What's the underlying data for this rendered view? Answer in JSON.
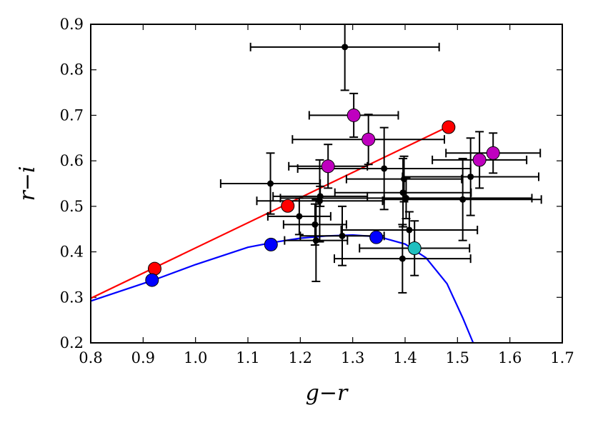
{
  "chart_data": {
    "type": "scatter",
    "title": "",
    "xlabel": "g−r",
    "ylabel": "r−i",
    "xlim": [
      0.8,
      1.7
    ],
    "ylim": [
      0.2,
      0.9
    ],
    "grid": false,
    "x_ticks": [
      "0.8",
      "0.9",
      "1.0",
      "1.1",
      "1.2",
      "1.3",
      "1.4",
      "1.5",
      "1.6",
      "1.7"
    ],
    "y_ticks": [
      "0.2",
      "0.3",
      "0.4",
      "0.5",
      "0.6",
      "0.7",
      "0.8",
      "0.9"
    ],
    "error_points": [
      {
        "x": 1.285,
        "y": 0.85,
        "xerr": 0.18,
        "yerr": 0.095
      },
      {
        "x": 1.143,
        "y": 0.55,
        "xerr": 0.095,
        "yerr": 0.067
      },
      {
        "x": 1.36,
        "y": 0.583,
        "xerr": 0.165,
        "yerr": 0.09
      },
      {
        "x": 1.238,
        "y": 0.522,
        "xerr": 0.09,
        "yerr": 0.022
      },
      {
        "x": 1.237,
        "y": 0.512,
        "xerr": 0.12,
        "yerr": 0.09
      },
      {
        "x": 1.398,
        "y": 0.56,
        "xerr": 0.11,
        "yerr": 0.05
      },
      {
        "x": 1.396,
        "y": 0.53,
        "xerr": 0.13,
        "yerr": 0.075
      },
      {
        "x": 1.402,
        "y": 0.518,
        "xerr": 0.24,
        "yerr": 0.045
      },
      {
        "x": 1.51,
        "y": 0.515,
        "xerr": 0.15,
        "yerr": 0.09
      },
      {
        "x": 1.525,
        "y": 0.565,
        "xerr": 0.13,
        "yerr": 0.085
      },
      {
        "x": 1.198,
        "y": 0.478,
        "xerr": 0.06,
        "yerr": 0.04
      },
      {
        "x": 1.228,
        "y": 0.46,
        "xerr": 0.06,
        "yerr": 0.045
      },
      {
        "x": 1.23,
        "y": 0.425,
        "xerr": 0.06,
        "yerr": 0.09
      },
      {
        "x": 1.28,
        "y": 0.435,
        "xerr": 0.08,
        "yerr": 0.065
      },
      {
        "x": 1.408,
        "y": 0.448,
        "xerr": 0.13,
        "yerr": 0.04
      },
      {
        "x": 1.395,
        "y": 0.385,
        "xerr": 0.13,
        "yerr": 0.075
      }
    ],
    "series": [
      {
        "name": "red",
        "color": "#ff0000",
        "type": "line",
        "x": [
          0.8,
          1.48
        ],
        "y": [
          0.298,
          0.674
        ]
      },
      {
        "name": "blue",
        "color": "#0000ff",
        "type": "curve",
        "x": [
          0.8,
          0.92,
          1.0,
          1.1,
          1.15,
          1.2,
          1.25,
          1.3,
          1.35,
          1.4,
          1.44,
          1.48,
          1.51,
          1.53
        ],
        "y": [
          0.292,
          0.338,
          0.372,
          0.41,
          0.421,
          0.43,
          0.435,
          0.437,
          0.433,
          0.417,
          0.387,
          0.33,
          0.255,
          0.2
        ]
      },
      {
        "name": "red markers",
        "color": "#ff0000",
        "type": "scatter",
        "x": [
          0.922,
          1.176,
          1.483
        ],
        "y": [
          0.363,
          0.501,
          0.674
        ],
        "xerr": [
          0,
          0,
          0
        ],
        "yerr": [
          0,
          0,
          0
        ]
      },
      {
        "name": "blue markers",
        "color": "#0000ff",
        "type": "scatter",
        "x": [
          0.917,
          1.144,
          1.345
        ],
        "y": [
          0.338,
          0.416,
          0.432
        ],
        "xerr": [
          0,
          0,
          0
        ],
        "yerr": [
          0,
          0,
          0
        ]
      },
      {
        "name": "cyan marker",
        "color": "#1fbfbf",
        "type": "scatter",
        "x": [
          1.418
        ],
        "y": [
          0.408
        ],
        "xerr": [
          0.105
        ],
        "yerr": [
          0.06
        ]
      },
      {
        "name": "magenta markers",
        "color": "#bf00bf",
        "type": "scatter",
        "x": [
          1.302,
          1.33,
          1.253,
          1.542,
          1.568
        ],
        "y": [
          0.7,
          0.647,
          0.588,
          0.602,
          0.617
        ],
        "xerr": [
          0.085,
          0.145,
          0.075,
          0.09,
          0.09
        ],
        "yerr": [
          0.048,
          0.055,
          0.048,
          0.062,
          0.044
        ]
      }
    ]
  }
}
